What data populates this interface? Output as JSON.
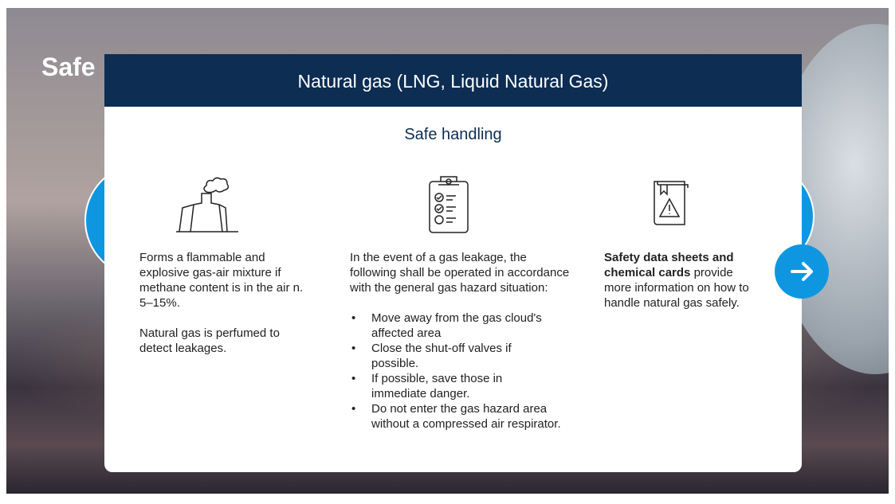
{
  "background": {
    "title": "Safe"
  },
  "modal": {
    "title": "Natural gas (LNG, Liquid Natural Gas)",
    "subtitle": "Safe handling",
    "columns": [
      {
        "paragraphs": [
          "Forms a flammable and explosive gas-air mixture if methane content is in the air n. 5–15%.",
          "Natural gas is perfumed to detect leakages."
        ]
      },
      {
        "intro": "In the event of a gas leakage, the following shall be operated in accordance with the general gas hazard situation:",
        "bullets": [
          "Move away from the gas cloud's affected area",
          "Close the shut-off valves if possible.",
          "If possible, save those in immediate danger.",
          "Do not enter the gas hazard area without a compressed air respirator."
        ]
      },
      {
        "bold": "Safety data sheets and chemical cards",
        "text": "provide more information on how to handle natural gas safely."
      }
    ]
  }
}
